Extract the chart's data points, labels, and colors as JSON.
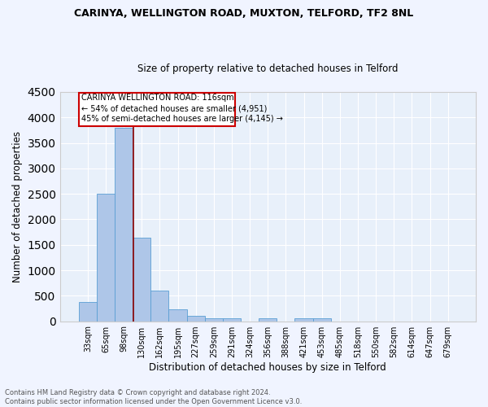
{
  "title": "CARINYA, WELLINGTON ROAD, MUXTON, TELFORD, TF2 8NL",
  "subtitle": "Size of property relative to detached houses in Telford",
  "xlabel": "Distribution of detached houses by size in Telford",
  "ylabel": "Number of detached properties",
  "footer_line1": "Contains HM Land Registry data © Crown copyright and database right 2024.",
  "footer_line2": "Contains public sector information licensed under the Open Government Licence v3.0.",
  "categories": [
    "33sqm",
    "65sqm",
    "98sqm",
    "130sqm",
    "162sqm",
    "195sqm",
    "227sqm",
    "259sqm",
    "291sqm",
    "324sqm",
    "356sqm",
    "388sqm",
    "421sqm",
    "453sqm",
    "485sqm",
    "518sqm",
    "550sqm",
    "582sqm",
    "614sqm",
    "647sqm",
    "679sqm"
  ],
  "values": [
    380,
    2500,
    3800,
    1640,
    600,
    240,
    110,
    65,
    55,
    0,
    55,
    0,
    55,
    55,
    0,
    0,
    0,
    0,
    0,
    0,
    0
  ],
  "bar_color": "#aec6e8",
  "bar_edge_color": "#5a9fd4",
  "bg_color": "#e8f0fa",
  "grid_color": "#ffffff",
  "red_line_x": 2.55,
  "annotation_text_line1": "CARINYA WELLINGTON ROAD: 116sqm",
  "annotation_text_line2": "← 54% of detached houses are smaller (4,951)",
  "annotation_text_line3": "45% of semi-detached houses are larger (4,145) →",
  "ylim": [
    0,
    4500
  ],
  "yticks": [
    0,
    500,
    1000,
    1500,
    2000,
    2500,
    3000,
    3500,
    4000,
    4500
  ],
  "fig_bg": "#f0f4ff"
}
